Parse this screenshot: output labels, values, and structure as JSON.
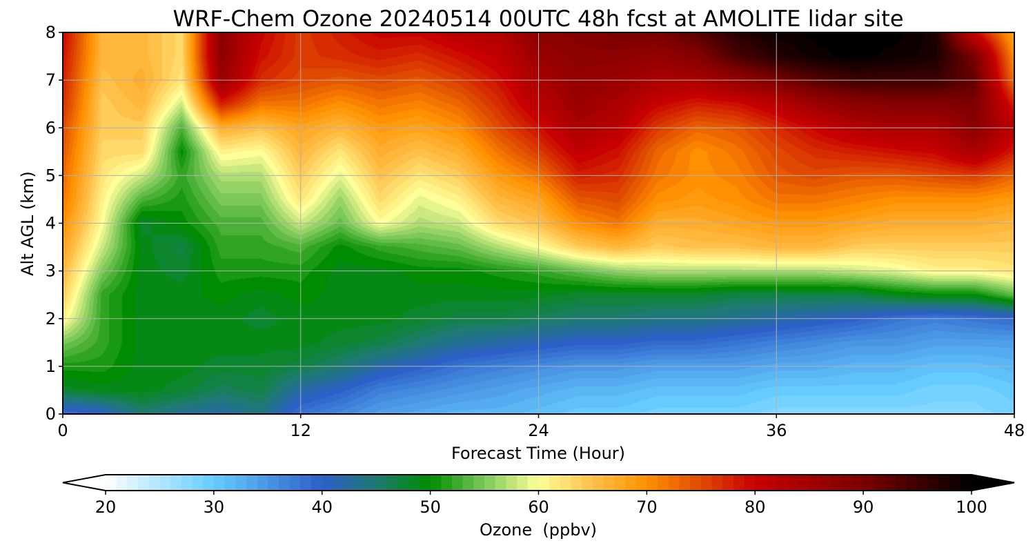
{
  "chart_data": {
    "type": "heatmap",
    "title": "WRF-Chem Ozone  20240514 00UTC 48h fcst at AMOLITE lidar site",
    "xlabel": "Forecast Time (Hour)",
    "ylabel": "Alt AGL (km)",
    "xlim": [
      0,
      48
    ],
    "ylim": [
      0,
      8
    ],
    "x_ticks": [
      "0",
      "12",
      "24",
      "36",
      "48"
    ],
    "y_ticks": [
      "0",
      "1",
      "2",
      "3",
      "4",
      "5",
      "6",
      "7",
      "8"
    ],
    "grid": true,
    "colorbar": {
      "label": "Ozone  (ppbv)",
      "range": [
        20,
        100
      ],
      "ticks": [
        "20",
        "30",
        "40",
        "50",
        "60",
        "70",
        "80",
        "90",
        "100"
      ],
      "extend": "both",
      "colors": [
        {
          "v": 20,
          "c": "#ffffff"
        },
        {
          "v": 30,
          "c": "#66ccff"
        },
        {
          "v": 40,
          "c": "#2d5fc8"
        },
        {
          "v": 45,
          "c": "#1e7a72"
        },
        {
          "v": 50,
          "c": "#008c00"
        },
        {
          "v": 55,
          "c": "#7cc85a"
        },
        {
          "v": 60,
          "c": "#ffff99"
        },
        {
          "v": 65,
          "c": "#ffc04a"
        },
        {
          "v": 70,
          "c": "#ff9100"
        },
        {
          "v": 75,
          "c": "#e04a00"
        },
        {
          "v": 80,
          "c": "#c80000"
        },
        {
          "v": 90,
          "c": "#7c0000"
        },
        {
          "v": 100,
          "c": "#000000"
        }
      ]
    },
    "grid_x": [
      0,
      2,
      4,
      6,
      8,
      10,
      12,
      14,
      16,
      18,
      20,
      22,
      24,
      26,
      28,
      30,
      32,
      34,
      36,
      38,
      40,
      42,
      44,
      46,
      48
    ],
    "grid_y": [
      0,
      0.5,
      1,
      1.5,
      2,
      2.5,
      3,
      3.5,
      4,
      4.5,
      5,
      5.5,
      6,
      6.5,
      7,
      7.5,
      8
    ],
    "values": [
      [
        38,
        48,
        51,
        55,
        61,
        64,
        66,
        68,
        70,
        72,
        73,
        74,
        75,
        77,
        78,
        79,
        80
      ],
      [
        40,
        49,
        51,
        52,
        52,
        52,
        55,
        58,
        60,
        61,
        62,
        63,
        64,
        64,
        65,
        66,
        66
      ],
      [
        45,
        49,
        49,
        49,
        49,
        49,
        49,
        49,
        48,
        53,
        58,
        63,
        64,
        66,
        67,
        66,
        66
      ],
      [
        43,
        48,
        49,
        49,
        49,
        49,
        48,
        47,
        50,
        51,
        52,
        50,
        53,
        58,
        62,
        63,
        63
      ],
      [
        42,
        46,
        48,
        49,
        49,
        50,
        51,
        52,
        53,
        55,
        57,
        61,
        67,
        78,
        86,
        88,
        88
      ],
      [
        44,
        47,
        48,
        49,
        48,
        49,
        51,
        52,
        53,
        55,
        57,
        60,
        65,
        72,
        77,
        79,
        80
      ],
      [
        38,
        42,
        47,
        49,
        49,
        50,
        51,
        53,
        58,
        62,
        64,
        66,
        68,
        72,
        75,
        76,
        76
      ],
      [
        36,
        40,
        45,
        48,
        49,
        49,
        49,
        50,
        54,
        56,
        59,
        62,
        66,
        70,
        74,
        77,
        78
      ],
      [
        34,
        37,
        42,
        47,
        49,
        49,
        49,
        52,
        60,
        63,
        65,
        67,
        69,
        72,
        75,
        78,
        80
      ],
      [
        33,
        36,
        40,
        45,
        48,
        49,
        50,
        53,
        57,
        59,
        62,
        65,
        68,
        71,
        74,
        77,
        80
      ],
      [
        32,
        35,
        38,
        43,
        47,
        49,
        50,
        54,
        58,
        61,
        64,
        67,
        70,
        73,
        76,
        79,
        82
      ],
      [
        32,
        34,
        37,
        42,
        47,
        49,
        51,
        57,
        63,
        66,
        69,
        72,
        75,
        77,
        79,
        81,
        83
      ],
      [
        31,
        33,
        36,
        41,
        46,
        49,
        52,
        60,
        65,
        68,
        72,
        76,
        79,
        82,
        84,
        86,
        88
      ],
      [
        30,
        32,
        35,
        40,
        45,
        48,
        54,
        64,
        70,
        74,
        78,
        81,
        84,
        86,
        87,
        88,
        89
      ],
      [
        30,
        32,
        35,
        40,
        45,
        48,
        56,
        66,
        72,
        75,
        77,
        79,
        82,
        84,
        86,
        88,
        90
      ],
      [
        29,
        31,
        34,
        39,
        44,
        48,
        57,
        64,
        67,
        70,
        72,
        73,
        76,
        80,
        84,
        87,
        90
      ],
      [
        29,
        31,
        34,
        39,
        44,
        48,
        57,
        65,
        67,
        69,
        70,
        70,
        73,
        78,
        84,
        89,
        93
      ],
      [
        29,
        31,
        34,
        38,
        43,
        47,
        57,
        65,
        68,
        70,
        71,
        72,
        74,
        79,
        87,
        94,
        97
      ],
      [
        28,
        30,
        33,
        37,
        42,
        47,
        57,
        66,
        69,
        72,
        74,
        75,
        77,
        82,
        90,
        97,
        99
      ],
      [
        28,
        30,
        33,
        36,
        41,
        47,
        57,
        66,
        69,
        72,
        75,
        77,
        80,
        86,
        93,
        99,
        100
      ],
      [
        28,
        30,
        32,
        35,
        40,
        47,
        58,
        64,
        68,
        71,
        74,
        78,
        83,
        88,
        95,
        100,
        100
      ],
      [
        28,
        30,
        32,
        35,
        38,
        49,
        59,
        64,
        67,
        70,
        74,
        79,
        84,
        89,
        95,
        99,
        100
      ],
      [
        28,
        29,
        31,
        34,
        37,
        50,
        61,
        64,
        67,
        70,
        75,
        80,
        84,
        89,
        95,
        98,
        98
      ],
      [
        28,
        29,
        31,
        34,
        38,
        50,
        61,
        64,
        67,
        70,
        76,
        84,
        88,
        90,
        92,
        90,
        80
      ],
      [
        29,
        30,
        32,
        34,
        39,
        54,
        62,
        64,
        66,
        69,
        73,
        78,
        82,
        78,
        72,
        70,
        68
      ]
    ]
  }
}
